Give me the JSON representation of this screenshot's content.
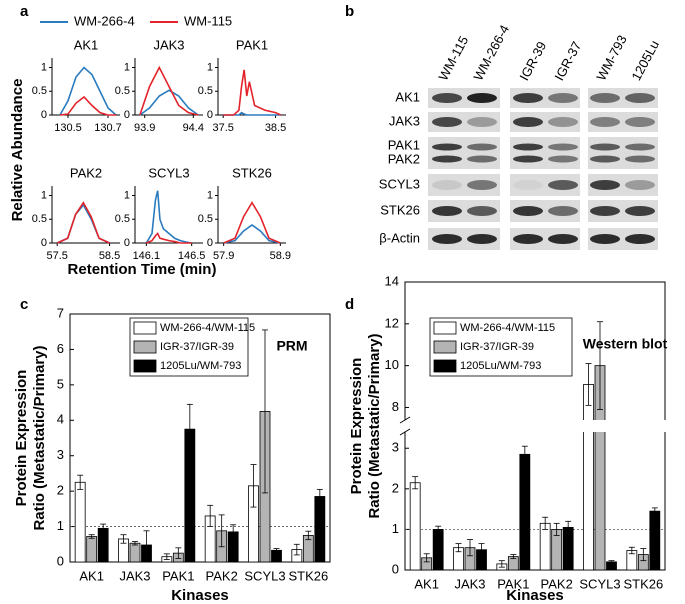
{
  "chart_data": [
    {
      "type": "line",
      "panel": "a",
      "ylabel": "Relative Abundance",
      "xlabel": "Retention Time (min)",
      "series": [
        {
          "name": "WM-266-4",
          "color": "#2a7bc0"
        },
        {
          "name": "WM-115",
          "color": "#e3242b"
        }
      ],
      "ylim": [
        0,
        1.2
      ],
      "yticks": [
        0,
        0.5,
        1
      ],
      "subplots": [
        {
          "title": "AK1",
          "xlim": [
            130.42,
            130.76
          ],
          "xticks": [
            130.5,
            130.7
          ],
          "x": [
            130.46,
            130.5,
            130.54,
            130.58,
            130.62,
            130.66,
            130.7,
            130.74
          ],
          "values": [
            [
              0,
              0.3,
              0.8,
              1.0,
              0.85,
              0.5,
              0.15,
              0
            ],
            [
              0,
              0.02,
              0.25,
              0.38,
              0.2,
              0.05,
              0,
              0
            ]
          ]
        },
        {
          "title": "JAK3",
          "xlim": [
            93.8,
            94.5
          ],
          "xticks": [
            93.9,
            94.4
          ],
          "x": [
            93.85,
            93.95,
            94.05,
            94.15,
            94.25,
            94.35,
            94.45
          ],
          "values": [
            [
              0,
              0.15,
              0.4,
              0.52,
              0.4,
              0.15,
              0
            ],
            [
              0,
              0.6,
              1.0,
              0.6,
              0.2,
              0.05,
              0
            ]
          ]
        },
        {
          "title": "PAK1",
          "xlim": [
            37.4,
            38.7
          ],
          "xticks": [
            37.5,
            38.5
          ],
          "x": [
            37.5,
            37.7,
            37.8,
            37.85,
            37.9,
            37.95,
            38.0,
            38.1,
            38.3,
            38.5,
            38.6
          ],
          "values": [
            [
              0,
              0,
              0,
              0.05,
              0.02,
              0,
              0,
              0,
              0,
              0,
              0
            ],
            [
              0,
              0,
              0.1,
              0.6,
              0.95,
              0.4,
              0.7,
              0.2,
              0.1,
              0.05,
              0
            ]
          ]
        },
        {
          "title": "PAK2",
          "xlim": [
            57.4,
            58.7
          ],
          "xticks": [
            57.5,
            58.5
          ],
          "x": [
            57.5,
            57.7,
            57.85,
            58.0,
            58.15,
            58.3,
            58.5
          ],
          "values": [
            [
              0,
              0.1,
              0.6,
              0.8,
              0.5,
              0.1,
              0
            ],
            [
              0,
              0.1,
              0.6,
              0.85,
              0.55,
              0.1,
              0
            ]
          ]
        },
        {
          "title": "SCYL3",
          "xlim": [
            146.0,
            146.6
          ],
          "xticks": [
            146.1,
            146.5
          ],
          "x": [
            146.1,
            146.15,
            146.18,
            146.2,
            146.22,
            146.25,
            146.3,
            146.35,
            146.4,
            146.45,
            146.5
          ],
          "values": [
            [
              0,
              0.2,
              0.9,
              1.1,
              0.5,
              0.3,
              0.2,
              0.1,
              0.05,
              0.02,
              0
            ],
            [
              0,
              0.05,
              0.15,
              0.2,
              0.1,
              0.08,
              0.05,
              0.03,
              0,
              0,
              0
            ]
          ]
        },
        {
          "title": "STK26",
          "xlim": [
            57.8,
            59.0
          ],
          "xticks": [
            57.9,
            58.9
          ],
          "x": [
            57.9,
            58.1,
            58.25,
            58.4,
            58.55,
            58.7,
            58.9
          ],
          "values": [
            [
              0,
              0.05,
              0.25,
              0.38,
              0.25,
              0.05,
              0
            ],
            [
              0,
              0.1,
              0.55,
              0.85,
              0.55,
              0.1,
              0
            ]
          ]
        }
      ]
    },
    {
      "type": "bar",
      "panel": "c",
      "annotation": "PRM",
      "ylabel": [
        "Protein Expression",
        "Ratio (Metastatic/Primary)"
      ],
      "xlabel": "Kinases",
      "categories": [
        "AK1",
        "JAK3",
        "PAK1",
        "PAK2",
        "SCYL3",
        "STK26"
      ],
      "series": [
        {
          "name": "WM-266-4/WM-115",
          "color": "#ffffff",
          "values": [
            2.25,
            0.65,
            0.15,
            1.3,
            2.15,
            0.35
          ],
          "errors": [
            0.2,
            0.12,
            0.08,
            0.3,
            0.6,
            0.15
          ]
        },
        {
          "name": "IGR-37/IGR-39",
          "color": "#b4b4b4",
          "values": [
            0.72,
            0.53,
            0.25,
            0.88,
            4.25,
            0.75
          ],
          "errors": [
            0.05,
            0.05,
            0.15,
            0.45,
            2.3,
            0.12
          ]
        },
        {
          "name": "1205Lu/WM-793",
          "color": "#000000",
          "values": [
            0.95,
            0.48,
            3.75,
            0.85,
            0.33,
            1.85
          ],
          "errors": [
            0.12,
            0.4,
            0.7,
            0.2,
            0.05,
            0.2
          ]
        }
      ],
      "ylim": [
        0,
        7
      ],
      "yticks": [
        0,
        1,
        2,
        3,
        4,
        5,
        6,
        7
      ],
      "ref_line": 1
    },
    {
      "type": "bar",
      "panel": "d",
      "annotation": "Western blot",
      "ylabel": [
        "Protein Expression",
        "Ratio (Metastatic/Primary)"
      ],
      "xlabel": "Kinases",
      "categories": [
        "AK1",
        "JAK3",
        "PAK1",
        "PAK2",
        "SCYL3",
        "STK26"
      ],
      "series": [
        {
          "name": "WM-266-4/WM-115",
          "color": "#ffffff",
          "values": [
            2.15,
            0.55,
            0.15,
            1.15,
            9.1,
            0.48
          ],
          "errors": [
            0.15,
            0.1,
            0.08,
            0.15,
            1.0,
            0.08
          ]
        },
        {
          "name": "IGR-37/IGR-39",
          "color": "#b4b4b4",
          "values": [
            0.3,
            0.55,
            0.33,
            1.0,
            10.0,
            0.38
          ],
          "errors": [
            0.1,
            0.2,
            0.05,
            0.15,
            2.1,
            0.15
          ]
        },
        {
          "name": "1205Lu/WM-793",
          "color": "#000000",
          "values": [
            1.0,
            0.5,
            2.85,
            1.05,
            0.2,
            1.45
          ],
          "errors": [
            0.08,
            0.15,
            0.2,
            0.15,
            0.03,
            0.08
          ]
        }
      ],
      "ylim": [
        0,
        14
      ],
      "axis_break": [
        3.4,
        7.4
      ],
      "yticks": [
        0,
        1,
        2,
        3,
        8,
        10,
        12,
        14
      ],
      "ref_line": 1
    }
  ],
  "western_blot": {
    "panel": "b",
    "cell_lines": [
      "WM-115",
      "WM-266-4",
      "IGR-39",
      "IGR-37",
      "WM-793",
      "1205Lu"
    ],
    "proteins": [
      "AK1",
      "JAK3",
      "PAK1",
      "PAK2",
      "SCYL3",
      "STK26",
      "β-Actin"
    ]
  }
}
